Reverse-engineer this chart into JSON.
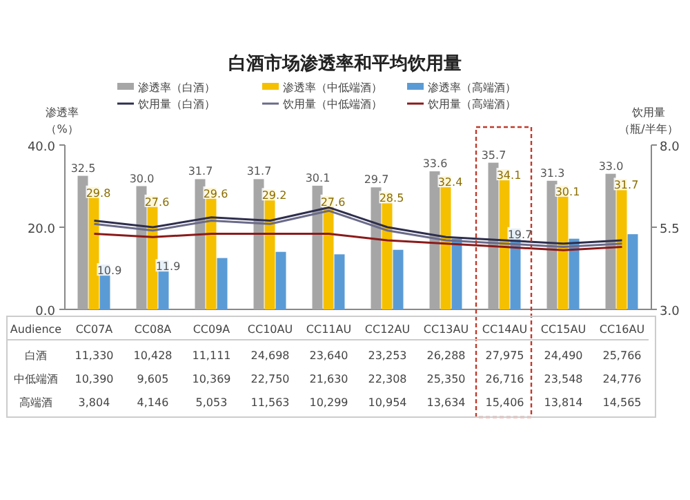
{
  "chart_data": {
    "type": "bar",
    "title": "白酒市场渗透率和平均饮用量",
    "ylabel": "渗透率（%）",
    "y2label": "饮用量（瓶/半年）",
    "categories": [
      "CC07A",
      "CC08A",
      "CC09A",
      "CC10AU",
      "CC11AU",
      "CC12AU",
      "CC13AU",
      "CC14AU",
      "CC15AU",
      "CC16AU"
    ],
    "ylim": [
      0,
      40
    ],
    "yticks": [
      {
        "value": 0,
        "label": "0.0"
      },
      {
        "value": 20,
        "label": "20.0"
      },
      {
        "value": 40,
        "label": "40.0"
      }
    ],
    "y2lim": [
      3,
      8
    ],
    "y2ticks": [
      {
        "value": 3,
        "label": "3.0"
      },
      {
        "value": 5.5,
        "label": "5.5"
      },
      {
        "value": 8,
        "label": "8.0"
      }
    ],
    "series": [
      {
        "name": "渗透率（白酒）",
        "color": "#a6a6a6",
        "values": [
          32.5,
          30.0,
          31.7,
          31.7,
          30.1,
          29.7,
          33.6,
          35.7,
          31.3,
          33.0
        ],
        "value_labels": [
          "32.5",
          "30.0",
          "31.7",
          "31.7",
          "30.1",
          "29.7",
          "33.6",
          "35.7",
          "31.3",
          "33.0"
        ]
      },
      {
        "name": "渗透率（中低端酒）",
        "color": "#f5c000",
        "values": [
          29.8,
          27.6,
          29.6,
          29.2,
          27.6,
          28.5,
          32.4,
          34.1,
          30.1,
          31.7
        ],
        "value_labels": [
          "29.8",
          "27.6",
          "29.6",
          "29.2",
          "27.6",
          "28.5",
          "32.4",
          "34.1",
          "30.1",
          "31.7"
        ]
      },
      {
        "name": "渗透率（高端酒）",
        "color": "#5b9bd5",
        "values": [
          10.9,
          11.9,
          12.5,
          14.0,
          13.4,
          14.5,
          17.2,
          19.7,
          17.2,
          18.3
        ],
        "value_labels": [
          "10.9",
          "11.9",
          null,
          null,
          null,
          null,
          null,
          "19.7",
          null,
          null
        ]
      },
      {
        "name": "饮用量（白酒）",
        "type": "line",
        "axis": "y2",
        "color": "#2e2e4e",
        "values": [
          5.7,
          5.5,
          5.8,
          5.7,
          6.1,
          5.5,
          5.2,
          5.1,
          5.0,
          5.1
        ]
      },
      {
        "name": "饮用量（中低端酒）",
        "type": "line",
        "axis": "y2",
        "color": "#6a6a8a",
        "values": [
          5.6,
          5.4,
          5.7,
          5.6,
          6.0,
          5.4,
          5.1,
          5.0,
          4.9,
          5.0
        ]
      },
      {
        "name": "饮用量（高端酒）",
        "type": "line",
        "axis": "y2",
        "color": "#8b1a1a",
        "values": [
          5.3,
          5.2,
          5.3,
          5.3,
          5.3,
          5.1,
          5.0,
          4.9,
          4.8,
          4.9
        ]
      }
    ],
    "annotations": [
      "Audience",
      "白酒",
      "11,330",
      "10,428",
      "11,111",
      "24,698",
      "23,640",
      "23,253",
      "26,288",
      "27,975",
      "24,490",
      "25,766",
      "中低端酒",
      "10,390",
      "9,605",
      "10,369",
      "22,750",
      "21,630",
      "22,308",
      "25,350",
      "26,716",
      "23,548",
      "24,776",
      "高端酒",
      "3,804",
      "4,146",
      "5,053",
      "11,563",
      "10,299",
      "10,954",
      "13,634",
      "15,406",
      "13,814",
      "14,565"
    ],
    "legend": "top",
    "grid": false
  }
}
